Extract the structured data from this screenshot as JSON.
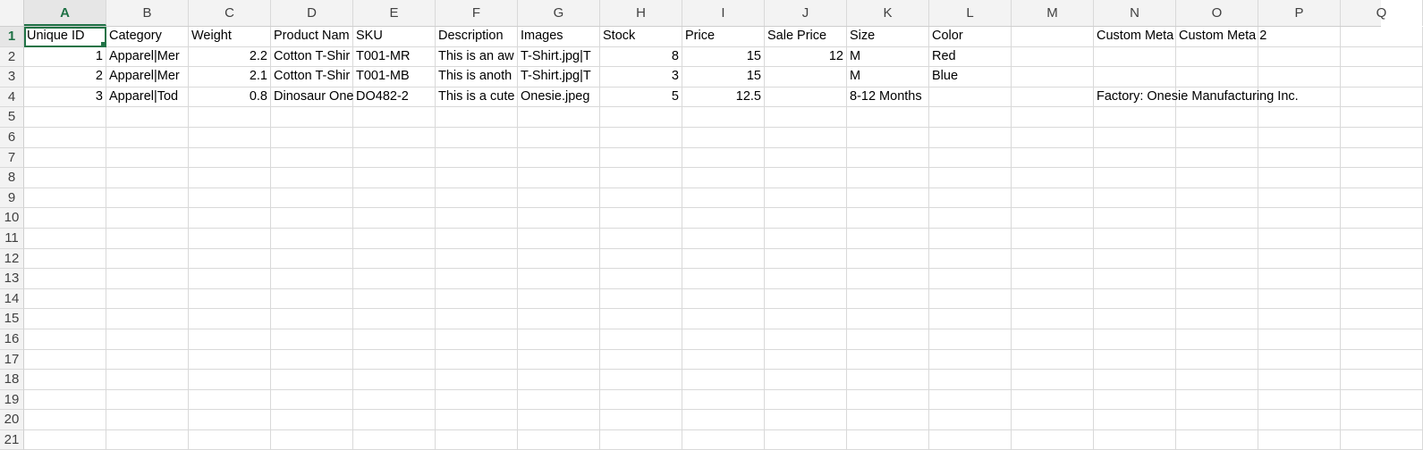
{
  "columns": [
    "A",
    "B",
    "C",
    "D",
    "E",
    "F",
    "G",
    "H",
    "I",
    "J",
    "K",
    "L",
    "M",
    "N",
    "O",
    "P",
    "Q"
  ],
  "selected_column": "A",
  "selected_row": "1",
  "row_numbers": [
    "1",
    "2",
    "3",
    "4",
    "5",
    "6",
    "7",
    "8",
    "9",
    "10",
    "11",
    "12",
    "13",
    "14",
    "15",
    "16",
    "17",
    "18",
    "19",
    "20",
    "21"
  ],
  "rows": [
    [
      "Unique ID",
      "Category",
      "Weight",
      "Product Nam",
      "SKU",
      "Description",
      "Images",
      "Stock",
      "Price",
      "Sale Price",
      "Size",
      "Color",
      "",
      "Custom Meta",
      "Custom Meta 2",
      "",
      ""
    ],
    [
      "1",
      "Apparel|Mer",
      "2.2",
      "Cotton T-Shir",
      "T001-MR",
      "This is an aw",
      "T-Shirt.jpg|T",
      "8",
      "15",
      "12",
      "M",
      "Red",
      "",
      "",
      "",
      "",
      ""
    ],
    [
      "2",
      "Apparel|Mer",
      "2.1",
      "Cotton T-Shir",
      "T001-MB",
      "This is anoth",
      "T-Shirt.jpg|T",
      "3",
      "15",
      "",
      "M",
      "Blue",
      "",
      "",
      "",
      "",
      ""
    ],
    [
      "3",
      "Apparel|Tod",
      "0.8",
      "Dinosaur One",
      "DO482-2",
      "This is a cute",
      "Onesie.jpeg",
      "5",
      "12.5",
      "",
      "8-12 Months",
      "",
      "",
      "Factory: Onesie Manufacturing Inc.",
      "",
      "",
      ""
    ]
  ],
  "numeric_columns": [
    0,
    2,
    7,
    8,
    9
  ]
}
